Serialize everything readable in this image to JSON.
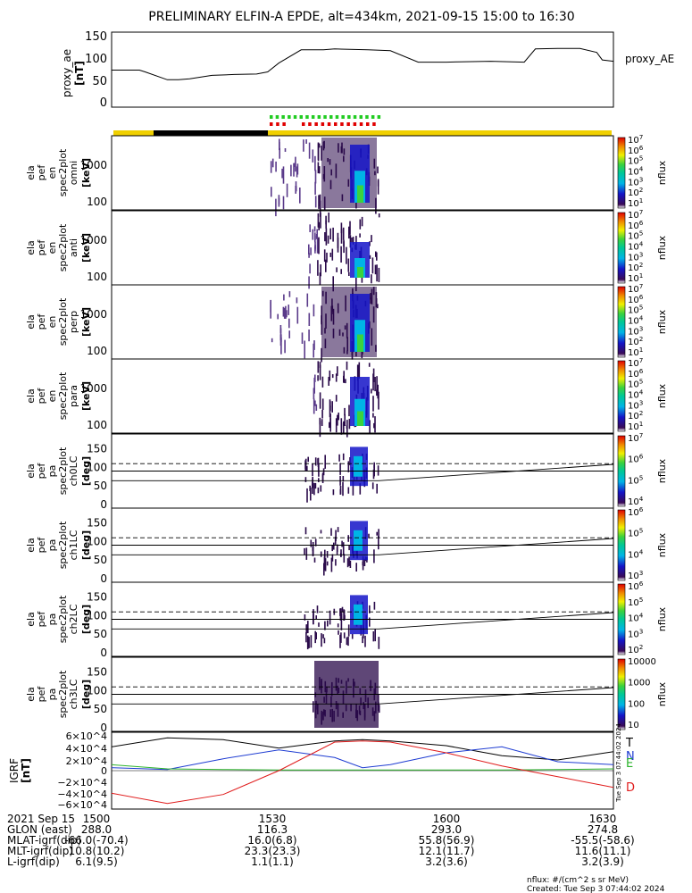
{
  "title": "PRELIMINARY ELFIN-A EPDE, alt=434km, 2021-09-15 15:00 to 16:30",
  "proxy_ae": {
    "ylabel_1": "proxy_ae",
    "ylabel_2": "[nT]",
    "legend": "proxy_AE",
    "yticks": [
      "150",
      "100",
      "50",
      "0"
    ],
    "ylim": [
      0,
      150
    ],
    "x_minutes": [
      0,
      5,
      6,
      10,
      12,
      14,
      18,
      22,
      26,
      28,
      30,
      34,
      38,
      40,
      46,
      50,
      55,
      60,
      68,
      74,
      76,
      80,
      84,
      87,
      88,
      90
    ],
    "values": [
      72,
      72,
      68,
      50,
      50,
      52,
      60,
      62,
      63,
      68,
      88,
      118,
      118,
      120,
      118,
      116,
      90,
      90,
      92,
      90,
      120,
      121,
      121,
      112,
      95,
      92
    ]
  },
  "spectrograms": [
    {
      "row_labels": [
        "ela",
        "pef",
        "en",
        "spec2plot",
        "omni",
        "[keV]"
      ],
      "yticks": [
        "1000",
        "100"
      ],
      "cb_ticks": [
        "10^7",
        "10^6",
        "10^5",
        "10^4",
        "10^3",
        "10^2",
        "10^1"
      ],
      "cb_label": "nflux"
    },
    {
      "row_labels": [
        "ela",
        "pef",
        "en",
        "spec2plot",
        "anti",
        "[keV]"
      ],
      "yticks": [
        "1000",
        "100"
      ],
      "cb_ticks": [
        "10^7",
        "10^6",
        "10^5",
        "10^4",
        "10^3",
        "10^2",
        "10^1"
      ],
      "cb_label": "nflux"
    },
    {
      "row_labels": [
        "ela",
        "pef",
        "en",
        "spec2plot",
        "perp",
        "[keV]"
      ],
      "yticks": [
        "1000",
        "100"
      ],
      "cb_ticks": [
        "10^7",
        "10^6",
        "10^5",
        "10^4",
        "10^3",
        "10^2",
        "10^1"
      ],
      "cb_label": "nflux"
    },
    {
      "row_labels": [
        "ela",
        "pef",
        "en",
        "spec2plot",
        "para",
        "[keV]"
      ],
      "yticks": [
        "1000",
        "100"
      ],
      "cb_ticks": [
        "10^7",
        "10^6",
        "10^5",
        "10^4",
        "10^3",
        "10^2",
        "10^1"
      ],
      "cb_label": "nflux"
    }
  ],
  "pitch_panels": [
    {
      "row_labels": [
        "ela",
        "pef",
        "pa",
        "spec2plot",
        "ch0LC",
        "[deg]"
      ],
      "yticks": [
        "150",
        "100",
        "50",
        "0"
      ],
      "cb_ticks": [
        "10^7",
        "10^6",
        "10^5",
        "10^4"
      ],
      "cb_label": "nflux"
    },
    {
      "row_labels": [
        "ela",
        "pef",
        "pa",
        "spec2plot",
        "ch1LC",
        "[deg]"
      ],
      "yticks": [
        "150",
        "100",
        "50",
        "0"
      ],
      "cb_ticks": [
        "10^6",
        "10^5",
        "10^4",
        "10^3"
      ],
      "cb_label": "nflux"
    },
    {
      "row_labels": [
        "ela",
        "pef",
        "pa",
        "spec2plot",
        "ch2LC",
        "[deg]"
      ],
      "yticks": [
        "150",
        "100",
        "50",
        "0"
      ],
      "cb_ticks": [
        "10^6",
        "10^5",
        "10^4",
        "10^3",
        "10^2"
      ],
      "cb_label": "nflux"
    },
    {
      "row_labels": [
        "ela",
        "pef",
        "pa",
        "spec2plot",
        "ch3LC",
        "[deg]"
      ],
      "yticks": [
        "150",
        "100",
        "50",
        "0"
      ],
      "cb_ticks": [
        "10000",
        "1000",
        "100",
        "10"
      ],
      "cb_label": "nflux"
    }
  ],
  "igrf": {
    "ylabel_1": "IGRF",
    "ylabel_2": "[nT]",
    "yticks": [
      "6×10^4",
      "4×10^4",
      "2×10^4",
      "0",
      "−2×10^4",
      "−4×10^4",
      "−6×10^4"
    ],
    "ylim": [
      -60000,
      60000
    ],
    "legend": [
      {
        "name": "T",
        "color": "#000000"
      },
      {
        "name": "N",
        "color": "#1e3cd2"
      },
      {
        "name": "E",
        "color": "#2bb32b"
      },
      {
        "name": "D",
        "color": "#e01b1b"
      }
    ],
    "x_minutes": [
      0,
      10,
      20,
      30,
      40,
      45,
      50,
      60,
      70,
      80,
      90
    ],
    "series": [
      {
        "name": "T",
        "values": [
          40000,
          55000,
          52000,
          38000,
          50000,
          52000,
          50000,
          42000,
          25000,
          18000,
          32000
        ]
      },
      {
        "name": "N",
        "values": [
          5000,
          2000,
          20000,
          35000,
          22000,
          5000,
          10000,
          30000,
          40000,
          15000,
          10000
        ]
      },
      {
        "name": "E",
        "values": [
          10000,
          3000,
          2000,
          1000,
          1000,
          1000,
          1000,
          1000,
          1000,
          2000,
          3000
        ]
      },
      {
        "name": "D",
        "values": [
          -38000,
          -55000,
          -40000,
          0,
          48000,
          50000,
          48000,
          30000,
          8000,
          -10000,
          -28000
        ]
      }
    ],
    "timestamp": "Tue Sep  3 07:44:02 2024"
  },
  "chart_data": {
    "type": "line",
    "title": "PRELIMINARY ELFIN-A EPDE, alt=434km, 2021-09-15 15:00 to 16:30",
    "x_tick_labels": [
      "1500",
      "1530",
      "1600",
      "1630"
    ],
    "panels": [
      "proxy_ae",
      "spec2plot omni",
      "spec2plot anti",
      "spec2plot perp",
      "spec2plot para",
      "spec2plot ch0LC",
      "spec2plot ch1LC",
      "spec2plot ch2LC",
      "spec2plot ch3LC",
      "IGRF"
    ]
  },
  "footer": {
    "rows": [
      {
        "label": "2021 Sep 15",
        "vals": [
          "1500",
          "1530",
          "1600",
          "1630"
        ]
      },
      {
        "label": "GLON (east)",
        "vals": [
          "288.0",
          "116.3",
          "293.0",
          "274.8"
        ]
      },
      {
        "label": "MLAT-igrf(dip)",
        "vals": [
          "-66.0(-70.4)",
          "16.0(6.8)",
          "55.8(56.9)",
          "-55.5(-58.6)"
        ]
      },
      {
        "label": "MLT-igrf(dip)",
        "vals": [
          "10.8(10.2)",
          "23.3(23.3)",
          "12.1(11.7)",
          "11.6(11.1)"
        ]
      },
      {
        "label": "L-igrf(dip)",
        "vals": [
          "6.1(9.5)",
          "1.1(1.1)",
          "3.2(3.6)",
          "3.2(3.9)"
        ]
      }
    ],
    "units_note": "nflux: #/(cm^2 s sr MeV)",
    "created": "Created: Tue Sep  3 07:44:02 2024"
  }
}
